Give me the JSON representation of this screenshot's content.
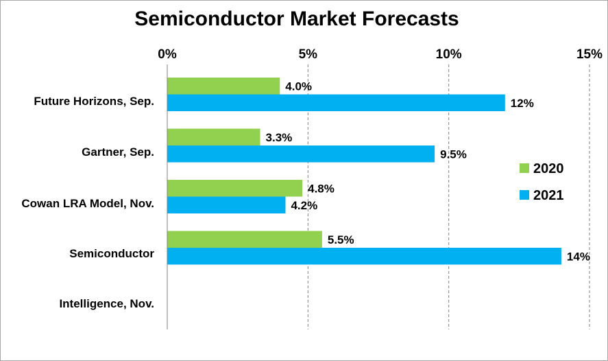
{
  "chart_data": {
    "type": "bar",
    "orientation": "horizontal",
    "title": "Semiconductor Market Forecasts",
    "xlabel": "",
    "ylabel": "",
    "xlim": [
      0,
      15
    ],
    "x_ticks": [
      0,
      5,
      10,
      15
    ],
    "x_tick_labels": [
      "0%",
      "5%",
      "10%",
      "15%"
    ],
    "x_axis_position": "top",
    "grid": "vertical dashed",
    "categories": [
      "Future Horizons, Sep.",
      "Gartner, Sep.",
      "Cowan LRA Model, Nov.",
      "Semiconductor",
      "Intelligence, Nov."
    ],
    "series": [
      {
        "name": "2020",
        "color": "#92d050",
        "values": [
          4.0,
          3.3,
          4.8,
          5.5,
          null
        ],
        "labels": [
          "4.0%",
          "3.3%",
          "4.8%",
          "5.5%",
          ""
        ]
      },
      {
        "name": "2021",
        "color": "#00b0f0",
        "values": [
          12,
          9.5,
          4.2,
          14,
          null
        ],
        "labels": [
          "12%",
          "9.5%",
          "4.2%",
          "14%",
          ""
        ]
      }
    ],
    "legend_position": "right"
  }
}
